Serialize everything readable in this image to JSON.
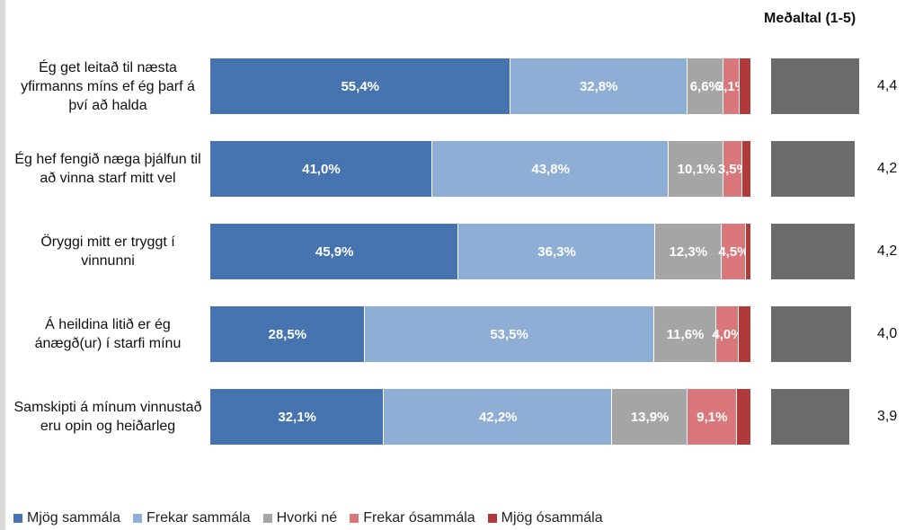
{
  "chart_data": [
    {
      "type": "stacked-bar-horizontal",
      "categories": [
        "Ég get leitað til næsta yfirmanns míns ef ég þarf á því að halda",
        "Ég hef fengið næga þjálfun til að vinna starf mitt vel",
        "Öryggi mitt er tryggt í vinnunni",
        "Á heildina litið er ég ánægð(ur) í starfi mínu",
        "Samskipti á mínum vinnustað eru opin og heiðarleg"
      ],
      "xlim": [
        0,
        100
      ],
      "legend": "bottom",
      "series": [
        {
          "name": "Mjög sammála",
          "color": "#4674b0",
          "values": [
            55.4,
            41.0,
            45.9,
            28.5,
            32.1
          ],
          "value_labels": [
            "55,4%",
            "41,0%",
            "45,9%",
            "28,5%",
            "32,1%"
          ]
        },
        {
          "name": "Frekar sammála",
          "color": "#8eaed6",
          "values": [
            32.8,
            43.8,
            36.3,
            53.5,
            42.2
          ],
          "value_labels": [
            "32,8%",
            "43,8%",
            "36,3%",
            "53,5%",
            "42,2%"
          ]
        },
        {
          "name": "Hvorki né",
          "color": "#a5a5a5",
          "values": [
            6.6,
            10.1,
            12.3,
            11.6,
            13.9
          ],
          "value_labels": [
            "6,6%",
            "10,1%",
            "12,3%",
            "11,6%",
            "13,9%"
          ]
        },
        {
          "name": "Frekar ósammála",
          "color": "#d9777a",
          "values": [
            3.1,
            3.5,
            4.5,
            4.0,
            9.1
          ],
          "value_labels": [
            "3,1%",
            "3,5%",
            "4,5%",
            "4,0%",
            "9,1%"
          ]
        },
        {
          "name": "Mjög ósammála",
          "color": "#b03a3a",
          "values": [
            2.1,
            1.6,
            1.0,
            2.4,
            2.7
          ],
          "value_labels": [
            null,
            null,
            null,
            null,
            null
          ]
        }
      ]
    },
    {
      "type": "bar-horizontal",
      "title": "Meðaltal (1-5)",
      "color": "#6b6b6b",
      "xlim": [
        0,
        4.5
      ],
      "values": [
        4.4,
        4.2,
        4.2,
        4.0,
        3.9
      ],
      "value_labels": [
        "4,4",
        "4,2",
        "4,2",
        "4,0",
        "3,9"
      ]
    }
  ]
}
